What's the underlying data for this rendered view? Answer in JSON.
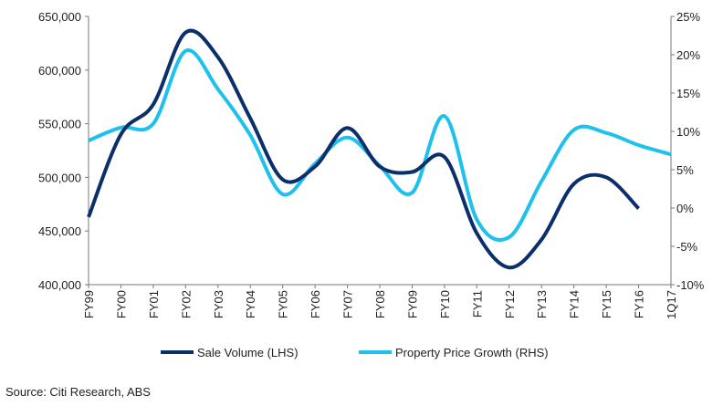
{
  "chart_data": {
    "type": "line",
    "categories": [
      "FY99",
      "FY00",
      "FY01",
      "FY02",
      "FY03",
      "FY04",
      "FY05",
      "FY06",
      "FY07",
      "FY08",
      "FY09",
      "FY10",
      "FY11",
      "FY12",
      "FY13",
      "FY14",
      "FY15",
      "FY16",
      "1Q17"
    ],
    "series": [
      {
        "name": "Sale Volume (LHS)",
        "axis": "left",
        "color": "#0b2f6b",
        "values": [
          463000,
          540000,
          568000,
          635000,
          612000,
          555000,
          498000,
          510000,
          546000,
          510000,
          505000,
          519000,
          448000,
          416000,
          442000,
          494000,
          500000,
          471000,
          null
        ]
      },
      {
        "name": "Property Price Growth (RHS)",
        "axis": "right",
        "color": "#1ec0ee",
        "values": [
          8.8,
          10.5,
          11.0,
          20.5,
          15.5,
          9.5,
          1.8,
          5.8,
          9.2,
          5.5,
          2.0,
          12.0,
          -1.5,
          -3.8,
          3.5,
          10.2,
          9.8,
          8.2,
          7.0
        ]
      }
    ],
    "left_axis": {
      "min": 400000,
      "max": 650000,
      "ticks": [
        "400,000",
        "450,000",
        "500,000",
        "550,000",
        "600,000",
        "650,000"
      ]
    },
    "right_axis": {
      "min": -10,
      "max": 25,
      "ticks": [
        "-10%",
        "-5%",
        "0%",
        "5%",
        "10%",
        "15%",
        "20%",
        "25%"
      ]
    },
    "grid": false,
    "legend_position": "bottom"
  },
  "legend": {
    "items": [
      {
        "label": "Sale Volume (LHS)",
        "color": "#0b2f6b"
      },
      {
        "label": "Property Price Growth (RHS)",
        "color": "#1ec0ee"
      }
    ]
  },
  "source": "Source: Citi Research, ABS"
}
